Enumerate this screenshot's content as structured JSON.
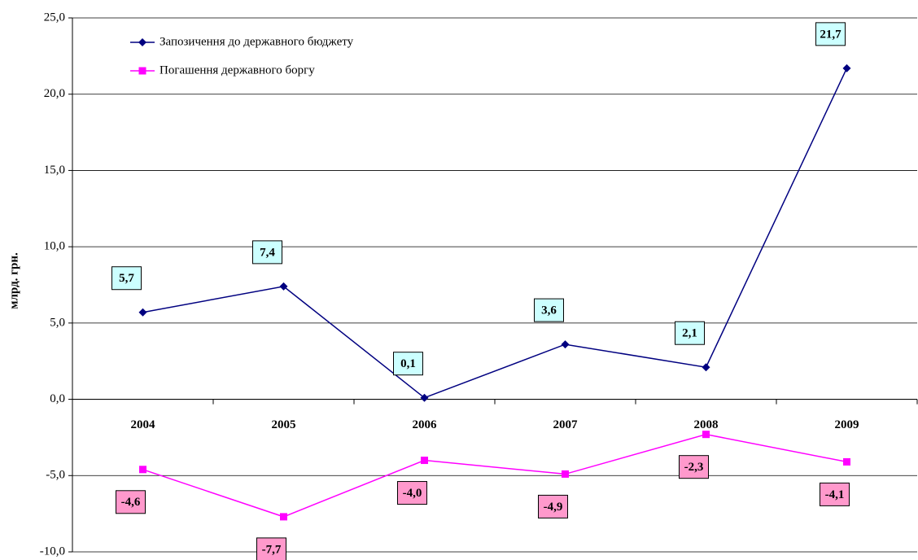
{
  "chart_data": {
    "type": "line",
    "y_label": "млрд. грн.",
    "categories": [
      "2004",
      "2005",
      "2006",
      "2007",
      "2008",
      "2009"
    ],
    "series": [
      {
        "name": "Запозичення до державного бюджету",
        "color": "#000080",
        "marker": "diamond",
        "label_fill": "#ccffff",
        "values": [
          5.7,
          7.4,
          0.1,
          3.6,
          2.1,
          21.7
        ],
        "value_labels": [
          "5,7",
          "7,4",
          "0,1",
          "3,6",
          "2,1",
          "21,7"
        ]
      },
      {
        "name": "Погашення державного боргу",
        "color": "#ff00ff",
        "marker": "square",
        "label_fill": "#ff99cc",
        "values": [
          -4.6,
          -7.7,
          -4.0,
          -4.9,
          -2.3,
          -4.1
        ],
        "value_labels": [
          "-4,6",
          "-7,7",
          "-4,0",
          "-4,9",
          "-2,3",
          "-4,1"
        ]
      }
    ],
    "ylim": [
      -10,
      25
    ],
    "yticks": [
      {
        "value": -10,
        "label": "-10,0"
      },
      {
        "value": -5,
        "label": "-5,0"
      },
      {
        "value": 0,
        "label": "0,0"
      },
      {
        "value": 5,
        "label": "5,0"
      },
      {
        "value": 10,
        "label": "10,0"
      },
      {
        "value": 15,
        "label": "15,0"
      },
      {
        "value": 20,
        "label": "20,0"
      },
      {
        "value": 25,
        "label": "25,0"
      }
    ],
    "grid": true,
    "legend": "top-left"
  }
}
